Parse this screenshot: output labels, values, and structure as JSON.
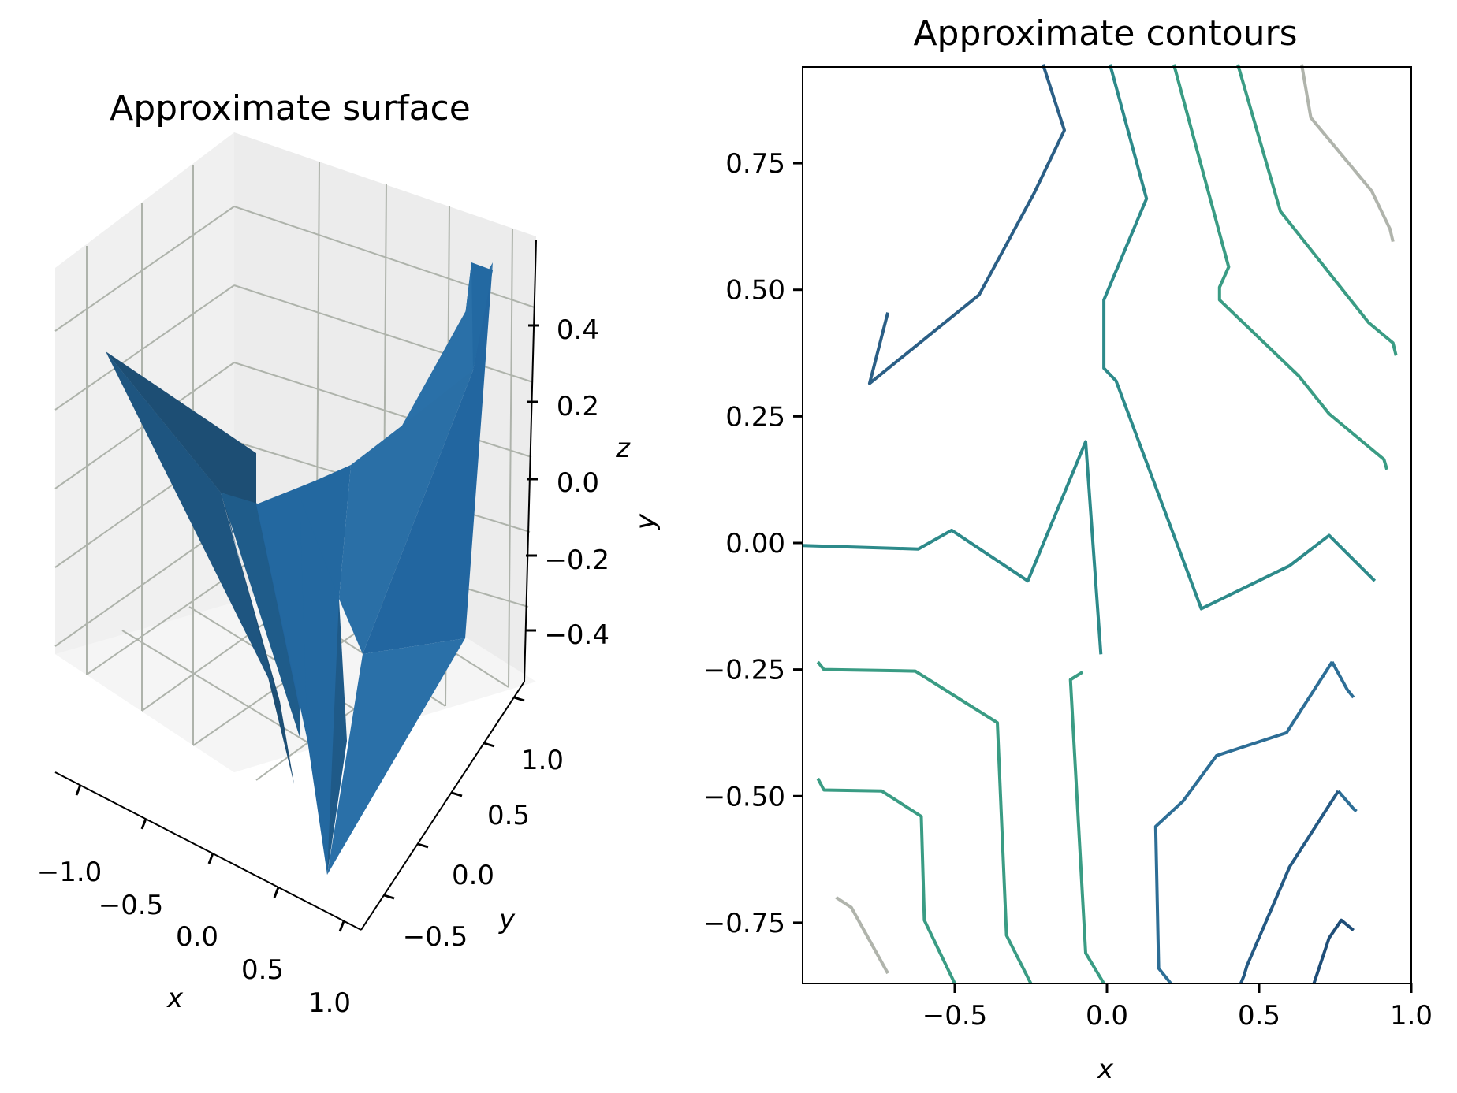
{
  "chart_data": [
    {
      "type": "surface3d",
      "title": "Approximate surface",
      "xlabel": "x",
      "ylabel": "y",
      "zlabel": "z",
      "x_ticks": [
        "−1.0",
        "−0.5",
        "0.0",
        "0.5",
        "1.0"
      ],
      "y_ticks": [
        "−0.5",
        "0.0",
        "0.5",
        "1.0"
      ],
      "z_ticks": [
        "−0.4",
        "−0.2",
        "0.0",
        "0.2",
        "0.4"
      ],
      "color": "#1f77b4",
      "shade_dark": "#1d4e74",
      "shade_mid": "#2368a0"
    },
    {
      "type": "contour",
      "title": "Approximate contours",
      "xlabel": "x",
      "ylabel": "y",
      "xlim": [
        -1.0,
        1.0
      ],
      "ylim": [
        -0.87,
        0.94
      ],
      "x_ticks": [
        {
          "v": -0.5,
          "label": "−0.5"
        },
        {
          "v": 0.0,
          "label": "0.0"
        },
        {
          "v": 0.5,
          "label": "0.5"
        },
        {
          "v": 1.0,
          "label": "1.0"
        }
      ],
      "y_ticks": [
        {
          "v": 0.75,
          "label": "0.75"
        },
        {
          "v": 0.5,
          "label": "0.50"
        },
        {
          "v": 0.25,
          "label": "0.25"
        },
        {
          "v": 0.0,
          "label": "0.00"
        },
        {
          "v": -0.25,
          "label": "−0.25"
        },
        {
          "v": -0.5,
          "label": "−0.50"
        },
        {
          "v": -0.75,
          "label": "−0.75"
        }
      ],
      "levels": [
        {
          "color": "#2b5f86",
          "lines": [
            [
              [
                -0.21,
                0.945
              ],
              [
                -0.14,
                0.815
              ],
              [
                -0.24,
                0.69
              ],
              [
                -0.42,
                0.49
              ],
              [
                -0.78,
                0.315
              ],
              [
                -0.72,
                0.455
              ]
            ]
          ]
        },
        {
          "color": "#2d8a8a",
          "lines": [
            [
              [
                0.01,
                0.945
              ],
              [
                0.13,
                0.68
              ],
              [
                -0.01,
                0.48
              ],
              [
                -0.01,
                0.345
              ],
              [
                0.03,
                0.32
              ],
              [
                0.31,
                -0.13
              ],
              [
                0.6,
                -0.045
              ],
              [
                0.73,
                0.015
              ],
              [
                0.88,
                -0.075
              ]
            ],
            [
              [
                -1.0,
                -0.005
              ],
              [
                -0.62,
                -0.012
              ],
              [
                -0.51,
                0.025
              ],
              [
                -0.26,
                -0.075
              ],
              [
                -0.07,
                0.2
              ],
              [
                -0.02,
                -0.22
              ]
            ]
          ]
        },
        {
          "color": "#3a9c84",
          "lines": [
            [
              [
                0.22,
                0.945
              ],
              [
                0.4,
                0.545
              ],
              [
                0.37,
                0.505
              ],
              [
                0.37,
                0.48
              ],
              [
                0.63,
                0.33
              ],
              [
                0.73,
                0.255
              ],
              [
                0.91,
                0.165
              ],
              [
                0.92,
                0.145
              ]
            ],
            [
              [
                0.43,
                0.945
              ],
              [
                0.57,
                0.655
              ],
              [
                0.86,
                0.435
              ],
              [
                0.94,
                0.395
              ],
              [
                0.95,
                0.37
              ]
            ],
            [
              [
                -0.95,
                -0.235
              ],
              [
                -0.93,
                -0.25
              ],
              [
                -0.63,
                -0.253
              ],
              [
                -0.36,
                -0.355
              ],
              [
                -0.33,
                -0.775
              ],
              [
                -0.25,
                -0.87
              ]
            ],
            [
              [
                -0.95,
                -0.465
              ],
              [
                -0.93,
                -0.488
              ],
              [
                -0.74,
                -0.49
              ],
              [
                -0.61,
                -0.54
              ],
              [
                -0.6,
                -0.745
              ],
              [
                -0.5,
                -0.87
              ]
            ],
            [
              [
                -0.01,
                -0.87
              ],
              [
                -0.07,
                -0.81
              ],
              [
                -0.12,
                -0.27
              ],
              [
                -0.08,
                -0.255
              ]
            ]
          ]
        },
        {
          "color": "#b0b4ac",
          "lines": [
            [
              [
                0.64,
                0.945
              ],
              [
                0.67,
                0.84
              ],
              [
                0.87,
                0.695
              ],
              [
                0.93,
                0.62
              ],
              [
                0.94,
                0.595
              ]
            ],
            [
              [
                -0.89,
                -0.7
              ],
              [
                -0.84,
                -0.72
              ],
              [
                -0.72,
                -0.85
              ]
            ]
          ]
        },
        {
          "color": "#2d6e96",
          "lines": [
            [
              [
                0.74,
                -0.235
              ],
              [
                0.79,
                -0.29
              ],
              [
                0.81,
                -0.305
              ]
            ],
            [
              [
                0.76,
                -0.49
              ],
              [
                0.81,
                -0.525
              ],
              [
                0.82,
                -0.53
              ]
            ],
            [
              [
                0.21,
                -0.87
              ],
              [
                0.17,
                -0.84
              ],
              [
                0.16,
                -0.56
              ],
              [
                0.25,
                -0.51
              ],
              [
                0.36,
                -0.42
              ],
              [
                0.59,
                -0.375
              ],
              [
                0.74,
                -0.235
              ]
            ]
          ]
        },
        {
          "color": "#255a84",
          "lines": [
            [
              [
                0.44,
                -0.87
              ],
              [
                0.45,
                -0.855
              ],
              [
                0.46,
                -0.835
              ],
              [
                0.6,
                -0.64
              ],
              [
                0.76,
                -0.49
              ]
            ]
          ]
        },
        {
          "color": "#1f4e78",
          "lines": [
            [
              [
                0.68,
                -0.87
              ],
              [
                0.73,
                -0.78
              ],
              [
                0.77,
                -0.745
              ],
              [
                0.81,
                -0.765
              ]
            ]
          ]
        }
      ]
    }
  ]
}
